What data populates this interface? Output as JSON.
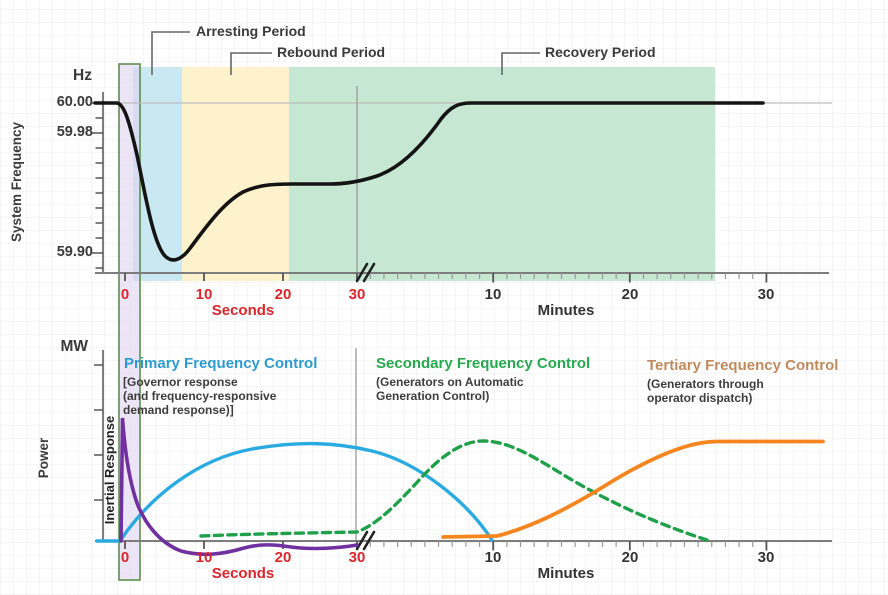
{
  "colors": {
    "band_arresting": "#c9e8f2",
    "band_rebound": "#fdf2cc",
    "band_recovery": "#c6e8d2",
    "inertial_box_fill": "rgba(224,213,239,0.62)",
    "inertial_box_border": "#5d8f4c",
    "curve_frequency": "#141414",
    "curve_inertial": "#7030a0",
    "curve_primary": "#29abe2",
    "curve_secondary": "#21a04b",
    "curve_tertiary": "#f5861f",
    "axis_gray": "#7d7d7d",
    "reference_line_gray": "#bdbdbd",
    "red_axis_text": "#d8262c",
    "title_primary": "#2e9bd0",
    "title_secondary": "#27a84e",
    "title_tertiary": "#c08a5e"
  },
  "top_chart": {
    "y_unit": "Hz",
    "y_axis_label": "System Frequency",
    "y_ticks": [
      "60.00",
      "59.98",
      "59.90"
    ],
    "periods": {
      "arresting": "Arresting Period",
      "rebound": "Rebound Period",
      "recovery": "Recovery Period"
    },
    "x_seconds": [
      "0",
      "10",
      "20",
      "30"
    ],
    "seconds_label": "Seconds",
    "x_minutes": [
      "10",
      "20",
      "30"
    ],
    "minutes_label": "Minutes"
  },
  "bottom_chart": {
    "y_unit": "MW",
    "y_axis_label": "Power",
    "inertial_label": "Inertial Response",
    "primary": {
      "title": "Primary Frequency Control",
      "lines": [
        "[Governor response",
        "(and frequency-responsive",
        "demand response)]"
      ]
    },
    "secondary": {
      "title": "Secondary Frequency Control",
      "lines": [
        "(Generators on Automatic",
        "Generation Control)"
      ]
    },
    "tertiary": {
      "title": "Tertiary Frequency Control",
      "lines": [
        "(Generators through",
        "operator dispatch)"
      ]
    },
    "x_seconds": [
      "0",
      "10",
      "20",
      "30"
    ],
    "seconds_label": "Seconds",
    "x_minutes": [
      "10",
      "20",
      "30"
    ],
    "minutes_label": "Minutes"
  },
  "chart_data": [
    {
      "type": "line",
      "title": "System frequency response to a grid disturbance",
      "ylabel": "System Frequency (Hz)",
      "xlabel": "Seconds (0-30), axis break, Minutes (1-30)",
      "yticks": [
        60.0,
        59.98,
        59.9
      ],
      "ylim": [
        59.888,
        60.005
      ],
      "axis_break": "between 30 seconds and 1 minute",
      "grid": false,
      "regions": [
        {
          "name": "Inertial Response window",
          "from": "0 s",
          "to": "2 s"
        },
        {
          "name": "Arresting Period",
          "from": "1 s",
          "to": "7 s"
        },
        {
          "name": "Rebound Period",
          "from": "7 s",
          "to": "21 s"
        },
        {
          "name": "Recovery Period",
          "from": "21 s",
          "to": "26 min"
        }
      ],
      "series": [
        {
          "name": "System Frequency",
          "points": [
            [
              "-4 s",
              60.0
            ],
            [
              "0 s",
              60.0
            ],
            [
              "3 s",
              59.95
            ],
            [
              "6 s",
              59.9
            ],
            [
              "10 s",
              59.92
            ],
            [
              "15 s",
              59.94
            ],
            [
              "21 s",
              59.945
            ],
            [
              "30 s",
              59.945
            ],
            [
              "2 min",
              59.95
            ],
            [
              "5 min",
              59.97
            ],
            [
              "8 min",
              59.995
            ],
            [
              "9 min",
              60.0
            ],
            [
              "30 min",
              60.0
            ]
          ]
        }
      ]
    },
    {
      "type": "line",
      "title": "Power contribution of frequency-control resources",
      "ylabel": "Power (MW)",
      "xlabel": "Seconds (0-30), axis break, Minutes (1-30)",
      "ylim": [
        -0.15,
        1.1
      ],
      "ylim_note": "illustrative relative MW scale, no numeric ticks shown",
      "series": [
        {
          "name": "Inertial Response",
          "style": "solid",
          "points": [
            [
              "0 s",
              0
            ],
            [
              "0.3 s",
              1.0
            ],
            [
              "2 s",
              0.35
            ],
            [
              "5 s",
              0.02
            ],
            [
              "8 s",
              -0.08
            ],
            [
              "12 s",
              -0.12
            ],
            [
              "18 s",
              -0.05
            ],
            [
              "24 s",
              -0.04
            ],
            [
              "30 s",
              -0.04
            ]
          ]
        },
        {
          "name": "Primary Frequency Control",
          "style": "solid",
          "points": [
            [
              "0 s",
              0
            ],
            [
              "5 s",
              0.45
            ],
            [
              "10 s",
              0.72
            ],
            [
              "20 s",
              0.8
            ],
            [
              "30 s",
              0.74
            ],
            [
              "5 min",
              0.55
            ],
            [
              "10 min",
              0
            ]
          ]
        },
        {
          "name": "Secondary Frequency Control",
          "style": "dashed",
          "points": [
            [
              "10 s",
              0.04
            ],
            [
              "30 s",
              0.07
            ],
            [
              "3 min",
              0.45
            ],
            [
              "8 min",
              0.82
            ],
            [
              "12 min",
              0.75
            ],
            [
              "20 min",
              0.4
            ],
            [
              "26 min",
              0
            ]
          ]
        },
        {
          "name": "Tertiary Frequency Control",
          "style": "solid",
          "points": [
            [
              "6 min",
              0.03
            ],
            [
              "10 min",
              0.05
            ],
            [
              "15 min",
              0.35
            ],
            [
              "20 min",
              0.62
            ],
            [
              "25 min",
              0.8
            ],
            [
              "26 min",
              0.82
            ],
            [
              "34 min",
              0.82
            ]
          ]
        }
      ]
    }
  ]
}
